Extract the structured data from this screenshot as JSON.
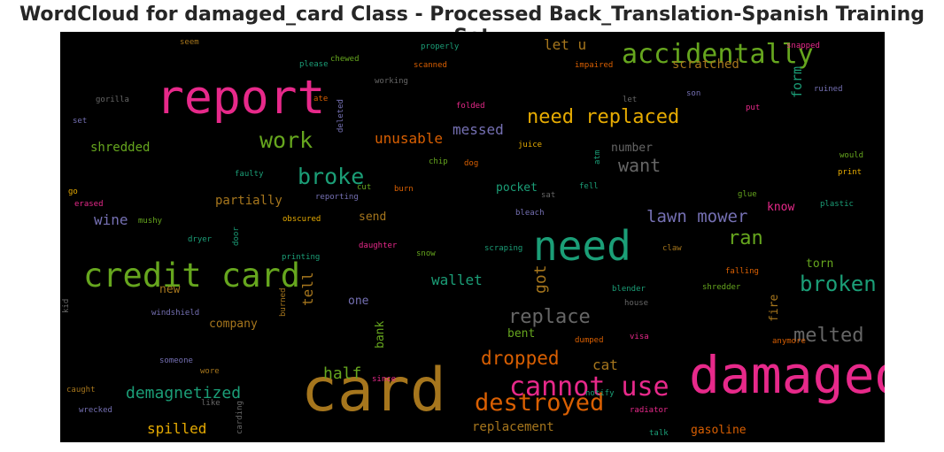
{
  "chart_data": {
    "type": "wordcloud",
    "title": "WordCloud for damaged_card Class - Processed Back_Translation-Spanish Training Set",
    "background": "#000000",
    "palette": [
      "#1b9e77",
      "#d95f02",
      "#7570b3",
      "#e7298a",
      "#66a61e",
      "#e6ab02",
      "#a6761d",
      "#666666"
    ],
    "words": [
      {
        "text": "card",
        "weight": 1.0,
        "color": "#a6761d"
      },
      {
        "text": "report",
        "weight": 0.72,
        "color": "#e7298a"
      },
      {
        "text": "damaged",
        "weight": 0.78,
        "color": "#e7298a"
      },
      {
        "text": "need",
        "weight": 0.62,
        "color": "#1b9e77"
      },
      {
        "text": "credit card",
        "weight": 0.5,
        "color": "#66a61e"
      },
      {
        "text": "accidentally",
        "weight": 0.4,
        "color": "#66a61e"
      },
      {
        "text": "cannot use",
        "weight": 0.4,
        "color": "#e7298a"
      },
      {
        "text": "destroyed",
        "weight": 0.36,
        "color": "#d95f02"
      },
      {
        "text": "work",
        "weight": 0.34,
        "color": "#66a61e"
      },
      {
        "text": "broke",
        "weight": 0.34,
        "color": "#1b9e77"
      },
      {
        "text": "broken",
        "weight": 0.32,
        "color": "#1b9e77"
      },
      {
        "text": "melted",
        "weight": 0.3,
        "color": "#666666"
      },
      {
        "text": "replace",
        "weight": 0.3,
        "color": "#666666"
      },
      {
        "text": "need replaced",
        "weight": 0.3,
        "color": "#e6ab02"
      },
      {
        "text": "ran",
        "weight": 0.3,
        "color": "#66a61e"
      },
      {
        "text": "dropped",
        "weight": 0.28,
        "color": "#d95f02"
      },
      {
        "text": "want",
        "weight": 0.27,
        "color": "#666666"
      },
      {
        "text": "lawn mower",
        "weight": 0.25,
        "color": "#7570b3"
      },
      {
        "text": "got",
        "weight": 0.24,
        "color": "#a6761d"
      },
      {
        "text": "half",
        "weight": 0.24,
        "color": "#66a61e"
      },
      {
        "text": "demagnetized",
        "weight": 0.24,
        "color": "#1b9e77"
      },
      {
        "text": "unusable",
        "weight": 0.22,
        "color": "#d95f02"
      },
      {
        "text": "messed",
        "weight": 0.22,
        "color": "#7570b3"
      },
      {
        "text": "let u",
        "weight": 0.22,
        "color": "#a6761d"
      },
      {
        "text": "wine",
        "weight": 0.22,
        "color": "#7570b3"
      },
      {
        "text": "cat",
        "weight": 0.22,
        "color": "#a6761d"
      },
      {
        "text": "tell",
        "weight": 0.22,
        "color": "#a6761d"
      },
      {
        "text": "spilled",
        "weight": 0.21,
        "color": "#e6ab02"
      },
      {
        "text": "wallet",
        "weight": 0.21,
        "color": "#1b9e77"
      },
      {
        "text": "form",
        "weight": 0.2,
        "color": "#1b9e77"
      },
      {
        "text": "scratched",
        "weight": 0.19,
        "color": "#a6761d"
      },
      {
        "text": "replacement",
        "weight": 0.19,
        "color": "#a6761d"
      },
      {
        "text": "shredded",
        "weight": 0.19,
        "color": "#66a61e"
      },
      {
        "text": "partially",
        "weight": 0.19,
        "color": "#a6761d"
      },
      {
        "text": "number",
        "weight": 0.18,
        "color": "#666666"
      },
      {
        "text": "pocket",
        "weight": 0.18,
        "color": "#1b9e77"
      },
      {
        "text": "bent",
        "weight": 0.18,
        "color": "#66a61e"
      },
      {
        "text": "fire",
        "weight": 0.18,
        "color": "#a6761d"
      },
      {
        "text": "torn",
        "weight": 0.17,
        "color": "#66a61e"
      },
      {
        "text": "gasoline",
        "weight": 0.17,
        "color": "#d95f02"
      },
      {
        "text": "company",
        "weight": 0.17,
        "color": "#a6761d"
      },
      {
        "text": "one",
        "weight": 0.17,
        "color": "#7570b3"
      },
      {
        "text": "send",
        "weight": 0.17,
        "color": "#a6761d"
      },
      {
        "text": "new",
        "weight": 0.17,
        "color": "#a6761d"
      },
      {
        "text": "bank",
        "weight": 0.17,
        "color": "#66a61e"
      },
      {
        "text": "know",
        "weight": 0.17,
        "color": "#e7298a"
      },
      {
        "text": "scanned",
        "weight": 0.12,
        "color": "#d95f02"
      },
      {
        "text": "chewed",
        "weight": 0.12,
        "color": "#66a61e"
      },
      {
        "text": "please",
        "weight": 0.12,
        "color": "#1b9e77"
      },
      {
        "text": "properly",
        "weight": 0.12,
        "color": "#1b9e77"
      },
      {
        "text": "impaired",
        "weight": 0.12,
        "color": "#d95f02"
      },
      {
        "text": "snapped",
        "weight": 0.12,
        "color": "#e7298a"
      },
      {
        "text": "seem",
        "weight": 0.12,
        "color": "#a6761d"
      },
      {
        "text": "working",
        "weight": 0.12,
        "color": "#666666"
      },
      {
        "text": "gorilla",
        "weight": 0.12,
        "color": "#666666"
      },
      {
        "text": "ate",
        "weight": 0.12,
        "color": "#d95f02"
      },
      {
        "text": "deleted",
        "weight": 0.12,
        "color": "#7570b3"
      },
      {
        "text": "folded",
        "weight": 0.12,
        "color": "#e7298a"
      },
      {
        "text": "let",
        "weight": 0.12,
        "color": "#666666"
      },
      {
        "text": "son",
        "weight": 0.12,
        "color": "#7570b3"
      },
      {
        "text": "ruined",
        "weight": 0.12,
        "color": "#7570b3"
      },
      {
        "text": "put",
        "weight": 0.12,
        "color": "#e7298a"
      },
      {
        "text": "set",
        "weight": 0.12,
        "color": "#7570b3"
      },
      {
        "text": "juice",
        "weight": 0.12,
        "color": "#e6ab02"
      },
      {
        "text": "would",
        "weight": 0.12,
        "color": "#66a61e"
      },
      {
        "text": "chip",
        "weight": 0.12,
        "color": "#66a61e"
      },
      {
        "text": "dog",
        "weight": 0.12,
        "color": "#d95f02"
      },
      {
        "text": "atm",
        "weight": 0.12,
        "color": "#1b9e77"
      },
      {
        "text": "print",
        "weight": 0.12,
        "color": "#e6ab02"
      },
      {
        "text": "faulty",
        "weight": 0.12,
        "color": "#1b9e77"
      },
      {
        "text": "go",
        "weight": 0.12,
        "color": "#e6ab02"
      },
      {
        "text": "cut",
        "weight": 0.12,
        "color": "#66a61e"
      },
      {
        "text": "reporting",
        "weight": 0.12,
        "color": "#7570b3"
      },
      {
        "text": "burn",
        "weight": 0.12,
        "color": "#d95f02"
      },
      {
        "text": "sat",
        "weight": 0.12,
        "color": "#666666"
      },
      {
        "text": "fell",
        "weight": 0.12,
        "color": "#1b9e77"
      },
      {
        "text": "erased",
        "weight": 0.12,
        "color": "#e7298a"
      },
      {
        "text": "glue",
        "weight": 0.12,
        "color": "#66a61e"
      },
      {
        "text": "plastic",
        "weight": 0.12,
        "color": "#1b9e77"
      },
      {
        "text": "bleach",
        "weight": 0.12,
        "color": "#7570b3"
      },
      {
        "text": "mushy",
        "weight": 0.12,
        "color": "#66a61e"
      },
      {
        "text": "obscured",
        "weight": 0.12,
        "color": "#e6ab02"
      },
      {
        "text": "dryer",
        "weight": 0.12,
        "color": "#1b9e77"
      },
      {
        "text": "door",
        "weight": 0.12,
        "color": "#1b9e77"
      },
      {
        "text": "daughter",
        "weight": 0.12,
        "color": "#e7298a"
      },
      {
        "text": "claw",
        "weight": 0.12,
        "color": "#a6761d"
      },
      {
        "text": "snow",
        "weight": 0.12,
        "color": "#66a61e"
      },
      {
        "text": "scraping",
        "weight": 0.12,
        "color": "#1b9e77"
      },
      {
        "text": "printing",
        "weight": 0.12,
        "color": "#1b9e77"
      },
      {
        "text": "falling",
        "weight": 0.12,
        "color": "#d95f02"
      },
      {
        "text": "kid",
        "weight": 0.12,
        "color": "#666666"
      },
      {
        "text": "blender",
        "weight": 0.12,
        "color": "#1b9e77"
      },
      {
        "text": "shredder",
        "weight": 0.12,
        "color": "#66a61e"
      },
      {
        "text": "house",
        "weight": 0.12,
        "color": "#666666"
      },
      {
        "text": "windshield",
        "weight": 0.12,
        "color": "#7570b3"
      },
      {
        "text": "burned",
        "weight": 0.12,
        "color": "#a6761d"
      },
      {
        "text": "anymore",
        "weight": 0.12,
        "color": "#d95f02"
      },
      {
        "text": "dumped",
        "weight": 0.12,
        "color": "#d95f02"
      },
      {
        "text": "visa",
        "weight": 0.12,
        "color": "#e7298a"
      },
      {
        "text": "someone",
        "weight": 0.12,
        "color": "#7570b3"
      },
      {
        "text": "wore",
        "weight": 0.12,
        "color": "#a6761d"
      },
      {
        "text": "caught",
        "weight": 0.12,
        "color": "#a6761d"
      },
      {
        "text": "since",
        "weight": 0.12,
        "color": "#e7298a"
      },
      {
        "text": "like",
        "weight": 0.12,
        "color": "#666666"
      },
      {
        "text": "notify",
        "weight": 0.12,
        "color": "#1b9e77"
      },
      {
        "text": "radiator",
        "weight": 0.12,
        "color": "#e7298a"
      },
      {
        "text": "wrecked",
        "weight": 0.12,
        "color": "#7570b3"
      },
      {
        "text": "carding",
        "weight": 0.12,
        "color": "#666666"
      },
      {
        "text": "talk",
        "weight": 0.12,
        "color": "#1b9e77"
      }
    ]
  }
}
